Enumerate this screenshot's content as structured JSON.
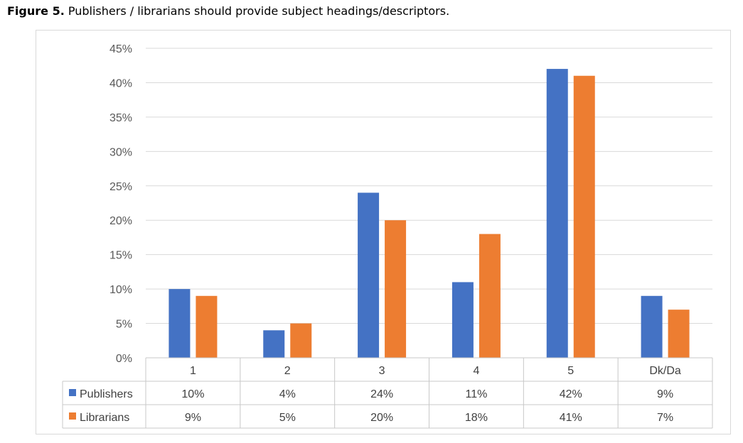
{
  "caption": {
    "lead": "Figure 5.",
    "text": "Publishers / librarians should provide subject headings/descriptors."
  },
  "chart_data": {
    "type": "bar",
    "categories": [
      "1",
      "2",
      "3",
      "4",
      "5",
      "Dk/Da"
    ],
    "series": [
      {
        "name": "Publishers",
        "color": "#4472c4",
        "values": [
          10,
          4,
          24,
          11,
          42,
          9
        ],
        "labels": [
          "10%",
          "4%",
          "24%",
          "11%",
          "42%",
          "9%"
        ]
      },
      {
        "name": "Librarians",
        "color": "#ed7d31",
        "values": [
          9,
          5,
          20,
          18,
          41,
          7
        ],
        "labels": [
          "9%",
          "5%",
          "20%",
          "18%",
          "41%",
          "7%"
        ]
      }
    ],
    "ylim": [
      0,
      45
    ],
    "yticks": [
      "0%",
      "5%",
      "10%",
      "15%",
      "20%",
      "25%",
      "30%",
      "35%",
      "40%",
      "45%"
    ],
    "grid": true,
    "legend": "data-table"
  }
}
